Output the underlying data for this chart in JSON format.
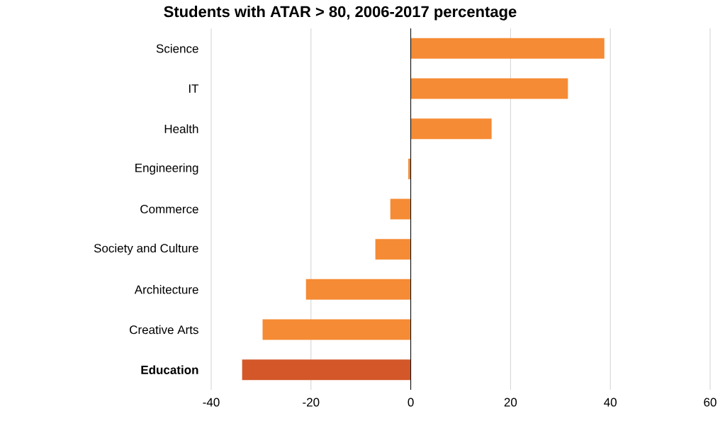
{
  "chart_data": {
    "type": "bar",
    "orientation": "horizontal",
    "title": "Students with ATAR > 80, 2006-2017 percentage",
    "categories": [
      "Science",
      "IT",
      "Health",
      "Engineering",
      "Commerce",
      "Society and Culture",
      "Architecture",
      "Creative Arts",
      "**Education**"
    ],
    "values": [
      38.8,
      31.5,
      16.2,
      -0.5,
      -4.1,
      -7.1,
      -21.0,
      -29.7,
      -33.8
    ],
    "colors": [
      "#f58b34",
      "#f58b34",
      "#f58b34",
      "#f58b34",
      "#f58b34",
      "#f58b34",
      "#f58b34",
      "#f58b34",
      "#d35729"
    ],
    "xlim": [
      -40,
      60
    ],
    "xticks": [
      -40,
      -20,
      0,
      20,
      40,
      60
    ],
    "grid": "x"
  }
}
